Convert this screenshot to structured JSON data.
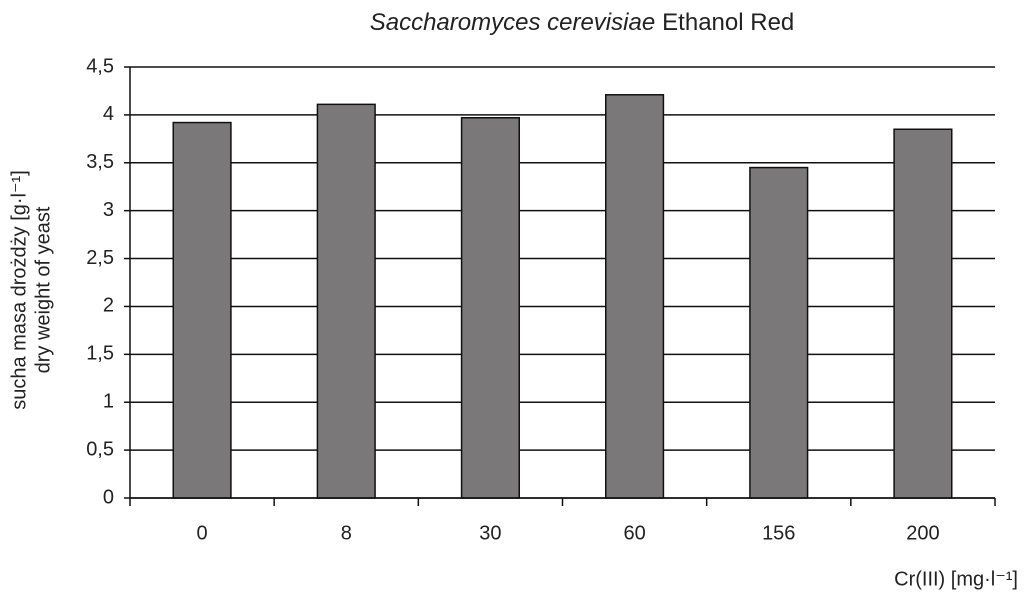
{
  "chart_data": {
    "type": "bar",
    "title": [
      "Saccharomyces cerevisiae",
      "Ethanol Red"
    ],
    "y_label": [
      "sucha masa drożdży [g·l⁻¹]",
      "dry weight of yeast"
    ],
    "x_label": "Cr(III) [mg·l⁻¹]",
    "categories": [
      "0",
      "8",
      "30",
      "60",
      "156",
      "200"
    ],
    "values": [
      3.92,
      4.11,
      3.97,
      4.21,
      3.45,
      3.85
    ],
    "color": "#7a7878",
    "ylim": [
      0,
      4.5
    ],
    "yticks": [
      0,
      {
        "value": 0.5,
        "label": "0,5"
      },
      1,
      {
        "value": 1.5,
        "label": "1,5"
      },
      2,
      {
        "value": 2.5,
        "label": "2,5"
      },
      3,
      {
        "value": 3.5,
        "label": "3,5"
      },
      4,
      {
        "value": 4.5,
        "label": "4,5"
      }
    ],
    "grid": true
  }
}
